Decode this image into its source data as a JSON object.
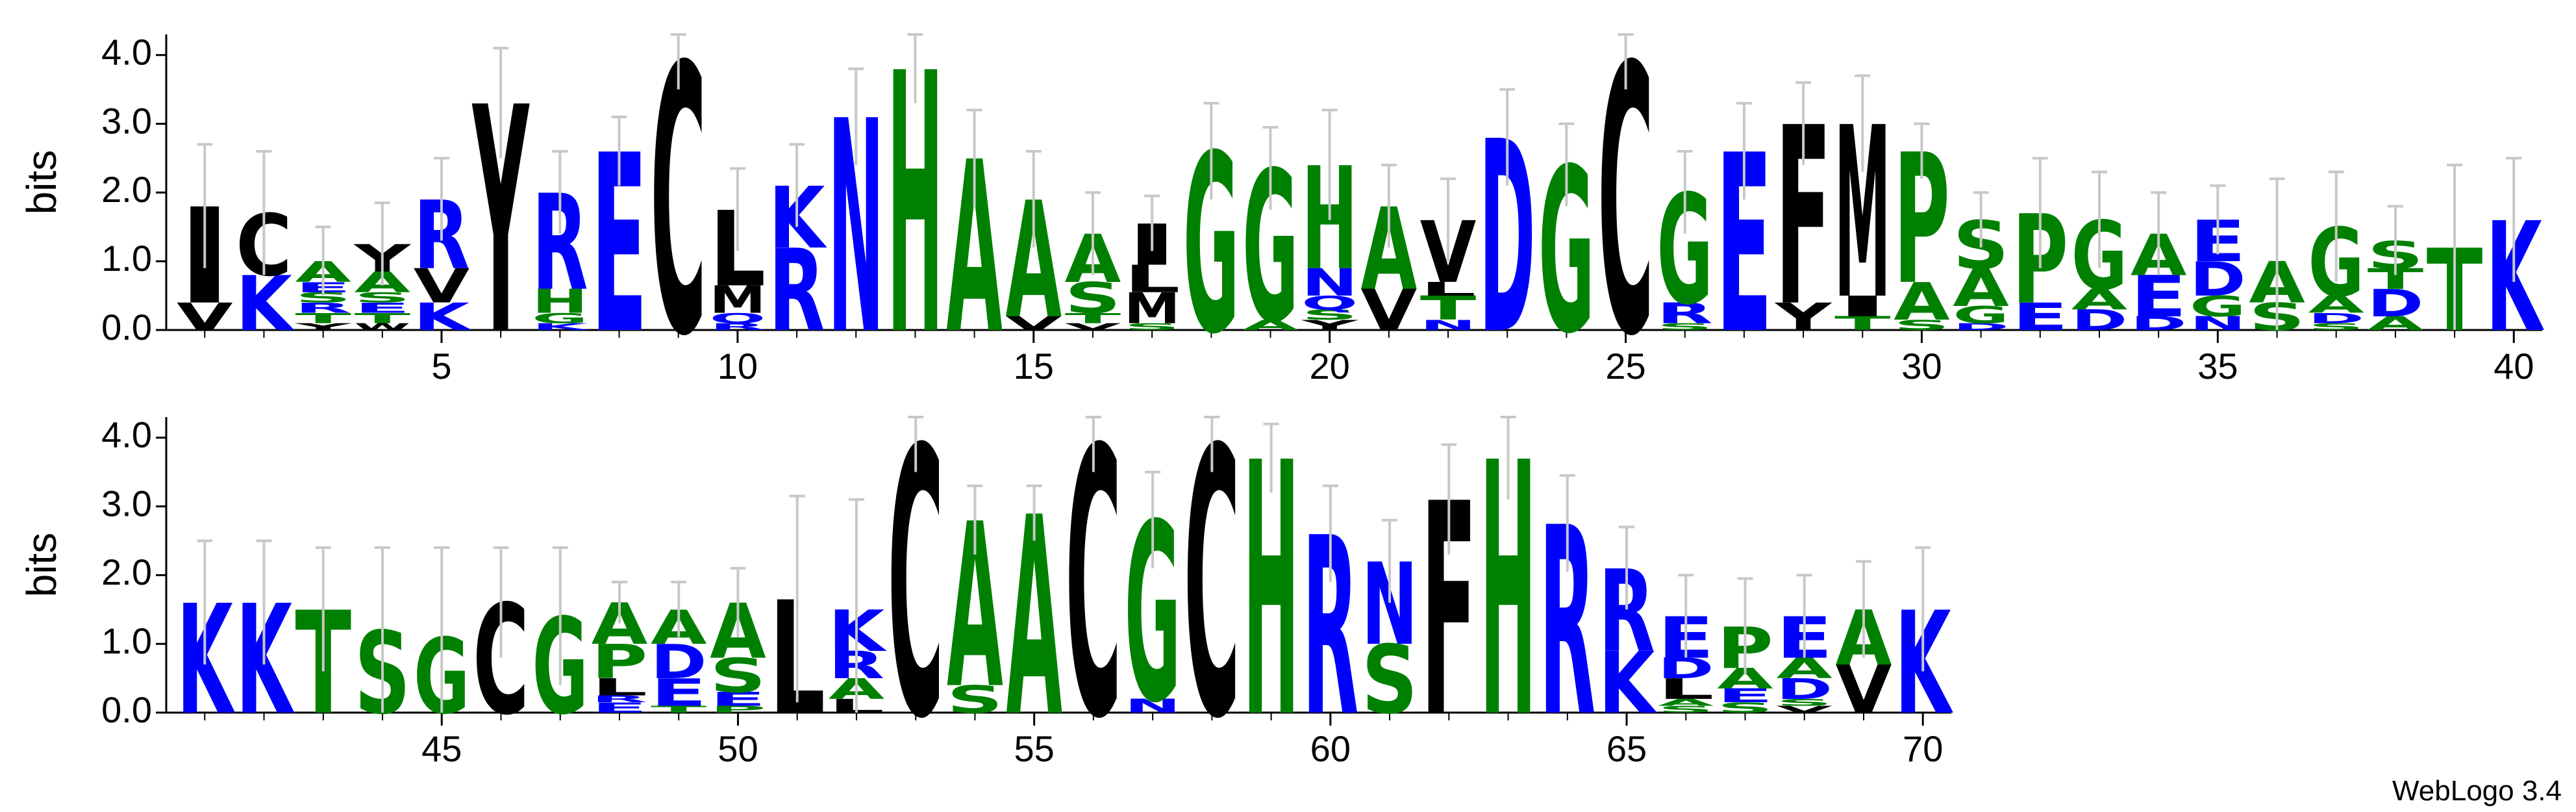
{
  "chart_data": [
    {
      "type": "logo",
      "ylabel": "bits",
      "xlim": [
        0.35,
        40.48
      ],
      "xticks": [
        5,
        10,
        15,
        20,
        25,
        30,
        35,
        40
      ],
      "ylim": [
        0,
        4.3
      ],
      "yticks": [
        {
          "value": 0,
          "label": "0.0"
        },
        {
          "value": 1,
          "label": "1.0"
        },
        {
          "value": 2,
          "label": "2.0"
        },
        {
          "value": 3,
          "label": "3.0"
        },
        {
          "value": 4,
          "label": "4.0"
        }
      ],
      "letter_colors": {
        "A": "#008000",
        "G": "#008000",
        "H": "#008000",
        "S": "#008000",
        "T": "#008000",
        "P": "#008000",
        "N": "#0000ff",
        "K": "#0000ff",
        "R": "#0000ff",
        "E": "#0000ff",
        "D": "#0000ff",
        "Q": "#0000ff",
        "C": "#000000",
        "Y": "#000000",
        "L": "#000000",
        "M": "#000000",
        "F": "#000000",
        "V": "#000000",
        "I": "#000000",
        "W": "#000000"
      },
      "x": [
        1,
        2,
        3,
        4,
        5,
        6,
        7,
        8,
        9,
        10,
        11,
        12,
        13,
        14,
        15,
        16,
        17,
        18,
        19,
        20,
        21,
        22,
        23,
        24,
        25,
        26,
        27,
        28,
        29,
        30,
        31,
        32,
        33,
        34,
        35,
        36,
        37,
        38,
        39,
        40
      ],
      "errors": [
        0.9,
        0.9,
        0.5,
        0.6,
        0.6,
        0.8,
        0.6,
        0.5,
        0.4,
        0.6,
        0.6,
        0.7,
        0.5,
        0.7,
        0.7,
        0.6,
        0.4,
        0.7,
        0.6,
        0.8,
        0.6,
        0.6,
        0.7,
        0.6,
        0.4,
        0.6,
        0.7,
        0.6,
        0.7,
        0.4,
        0.4,
        0.8,
        0.7,
        0.6,
        0.5,
        1.2,
        0.8,
        0.5,
        1.2,
        0.9
      ],
      "stacks": [
        [
          {
            "letter": "V",
            "bits": 0.4
          },
          {
            "letter": "I",
            "bits": 1.4
          }
        ],
        [
          {
            "letter": "K",
            "bits": 0.8
          },
          {
            "letter": "C",
            "bits": 0.9
          }
        ],
        [
          {
            "letter": "Y",
            "bits": 0.1
          },
          {
            "letter": "T",
            "bits": 0.15
          },
          {
            "letter": "R",
            "bits": 0.15
          },
          {
            "letter": "S",
            "bits": 0.15
          },
          {
            "letter": "E",
            "bits": 0.15
          },
          {
            "letter": "A",
            "bits": 0.3
          }
        ],
        [
          {
            "letter": "W",
            "bits": 0.1
          },
          {
            "letter": "T",
            "bits": 0.15
          },
          {
            "letter": "E",
            "bits": 0.15
          },
          {
            "letter": "S",
            "bits": 0.15
          },
          {
            "letter": "A",
            "bits": 0.3
          },
          {
            "letter": "Y",
            "bits": 0.4
          }
        ],
        [
          {
            "letter": "K",
            "bits": 0.4
          },
          {
            "letter": "V",
            "bits": 0.5
          },
          {
            "letter": "R",
            "bits": 1
          }
        ],
        [
          {
            "letter": "Y",
            "bits": 3.3
          }
        ],
        [
          {
            "letter": "K",
            "bits": 0.1
          },
          {
            "letter": "G",
            "bits": 0.15
          },
          {
            "letter": "H",
            "bits": 0.35
          },
          {
            "letter": "R",
            "bits": 1.4
          }
        ],
        [
          {
            "letter": "E",
            "bits": 2.6
          }
        ],
        [
          {
            "letter": "C",
            "bits": 3.9
          }
        ],
        [
          {
            "letter": "R",
            "bits": 0.1
          },
          {
            "letter": "Q",
            "bits": 0.15
          },
          {
            "letter": "M",
            "bits": 0.4
          },
          {
            "letter": "L",
            "bits": 1.1
          }
        ],
        [
          {
            "letter": "R",
            "bits": 1.2
          },
          {
            "letter": "K",
            "bits": 0.9
          }
        ],
        [
          {
            "letter": "N",
            "bits": 3.1
          }
        ],
        [
          {
            "letter": "H",
            "bits": 3.8
          }
        ],
        [
          {
            "letter": "A",
            "bits": 2.5
          }
        ],
        [
          {
            "letter": "V",
            "bits": 0.2
          },
          {
            "letter": "A",
            "bits": 1.7
          }
        ],
        [
          {
            "letter": "V",
            "bits": 0.1
          },
          {
            "letter": "T",
            "bits": 0.15
          },
          {
            "letter": "S",
            "bits": 0.45
          },
          {
            "letter": "A",
            "bits": 0.7
          }
        ],
        [
          {
            "letter": "S",
            "bits": 0.1
          },
          {
            "letter": "M",
            "bits": 0.45
          },
          {
            "letter": "L",
            "bits": 0.4
          },
          {
            "letter": "I",
            "bits": 0.6
          }
        ],
        [
          {
            "letter": "G",
            "bits": 2.6
          }
        ],
        [
          {
            "letter": "A",
            "bits": 0.15
          },
          {
            "letter": "G",
            "bits": 2.2
          }
        ],
        [
          {
            "letter": "Y",
            "bits": 0.15
          },
          {
            "letter": "S",
            "bits": 0.15
          },
          {
            "letter": "Q",
            "bits": 0.2
          },
          {
            "letter": "N",
            "bits": 0.4
          },
          {
            "letter": "H",
            "bits": 1.5
          }
        ],
        [
          {
            "letter": "V",
            "bits": 0.6
          },
          {
            "letter": "A",
            "bits": 1.2
          }
        ],
        [
          {
            "letter": "N",
            "bits": 0.15
          },
          {
            "letter": "T",
            "bits": 0.35
          },
          {
            "letter": "L",
            "bits": 0.2
          },
          {
            "letter": "V",
            "bits": 0.9
          }
        ],
        [
          {
            "letter": "D",
            "bits": 2.8
          }
        ],
        [
          {
            "letter": "G",
            "bits": 2.4
          }
        ],
        [
          {
            "letter": "C",
            "bits": 3.9
          }
        ],
        [
          {
            "letter": "S",
            "bits": 0.1
          },
          {
            "letter": "R",
            "bits": 0.3
          },
          {
            "letter": "G",
            "bits": 1.6
          }
        ],
        [
          {
            "letter": "E",
            "bits": 2.6
          }
        ],
        [
          {
            "letter": "Y",
            "bits": 0.4
          },
          {
            "letter": "F",
            "bits": 2.6
          }
        ],
        [
          {
            "letter": "T",
            "bits": 0.2
          },
          {
            "letter": "I",
            "bits": 0.3
          },
          {
            "letter": "M",
            "bits": 2.5
          }
        ],
        [
          {
            "letter": "S",
            "bits": 0.15
          },
          {
            "letter": "A",
            "bits": 0.55
          },
          {
            "letter": "P",
            "bits": 1.9
          }
        ],
        [
          {
            "letter": "D",
            "bits": 0.1
          },
          {
            "letter": "G",
            "bits": 0.25
          },
          {
            "letter": "A",
            "bits": 0.55
          },
          {
            "letter": "S",
            "bits": 0.7
          }
        ],
        [
          {
            "letter": "E",
            "bits": 0.4
          },
          {
            "letter": "P",
            "bits": 1.3
          }
        ],
        [
          {
            "letter": "D",
            "bits": 0.3
          },
          {
            "letter": "A",
            "bits": 0.3
          },
          {
            "letter": "G",
            "bits": 1
          }
        ],
        [
          {
            "letter": "D",
            "bits": 0.2
          },
          {
            "letter": "E",
            "bits": 0.6
          },
          {
            "letter": "A",
            "bits": 0.6
          }
        ],
        [
          {
            "letter": "N",
            "bits": 0.2
          },
          {
            "letter": "G",
            "bits": 0.3
          },
          {
            "letter": "D",
            "bits": 0.5
          },
          {
            "letter": "E",
            "bits": 0.6
          }
        ],
        [
          {
            "letter": "S",
            "bits": 0.4
          },
          {
            "letter": "A",
            "bits": 0.6
          }
        ],
        [
          {
            "letter": "S",
            "bits": 0.1
          },
          {
            "letter": "D",
            "bits": 0.15
          },
          {
            "letter": "A",
            "bits": 0.25
          },
          {
            "letter": "G",
            "bits": 1
          }
        ],
        [
          {
            "letter": "A",
            "bits": 0.2
          },
          {
            "letter": "D",
            "bits": 0.4
          },
          {
            "letter": "T",
            "bits": 0.3
          },
          {
            "letter": "S",
            "bits": 0.4
          }
        ],
        [
          {
            "letter": "T",
            "bits": 1.2
          }
        ],
        [
          {
            "letter": "K",
            "bits": 1.6
          }
        ]
      ]
    },
    {
      "type": "logo",
      "ylabel": "bits",
      "xlim": [
        40.35,
        70.48
      ],
      "xticks": [
        45,
        50,
        55,
        60,
        65,
        70
      ],
      "ylim": [
        0,
        4.3
      ],
      "yticks": [
        {
          "value": 0,
          "label": "0.0"
        },
        {
          "value": 1,
          "label": "1.0"
        },
        {
          "value": 2,
          "label": "2.0"
        },
        {
          "value": 3,
          "label": "3.0"
        },
        {
          "value": 4,
          "label": "4.0"
        }
      ],
      "letter_colors": {
        "A": "#008000",
        "G": "#008000",
        "H": "#008000",
        "S": "#008000",
        "T": "#008000",
        "P": "#008000",
        "N": "#0000ff",
        "K": "#0000ff",
        "R": "#0000ff",
        "E": "#0000ff",
        "D": "#0000ff",
        "Q": "#0000ff",
        "C": "#000000",
        "Y": "#000000",
        "L": "#000000",
        "M": "#000000",
        "F": "#000000",
        "V": "#000000",
        "I": "#000000",
        "W": "#000000"
      },
      "x": [
        41,
        42,
        43,
        44,
        45,
        46,
        47,
        48,
        49,
        50,
        51,
        52,
        53,
        54,
        55,
        56,
        57,
        58,
        59,
        60,
        61,
        62,
        63,
        64,
        65,
        66,
        67,
        68,
        69,
        70
      ],
      "errors": [
        0.9,
        0.9,
        0.9,
        1.2,
        1.3,
        0.8,
        1,
        0.3,
        0.4,
        0.5,
        1.5,
        1.6,
        0.4,
        0.5,
        0.4,
        0.4,
        0.7,
        0.4,
        0.5,
        0.7,
        0.6,
        0.8,
        0.6,
        0.7,
        0.6,
        0.6,
        0.7,
        0.6,
        0.7,
        0.9
      ],
      "stacks": [
        [
          {
            "letter": "K",
            "bits": 1.6
          }
        ],
        [
          {
            "letter": "K",
            "bits": 1.6
          }
        ],
        [
          {
            "letter": "T",
            "bits": 1.5
          }
        ],
        [
          {
            "letter": "S",
            "bits": 1.2
          }
        ],
        [
          {
            "letter": "G",
            "bits": 1.1
          }
        ],
        [
          {
            "letter": "C",
            "bits": 1.6
          }
        ],
        [
          {
            "letter": "G",
            "bits": 1.4
          }
        ],
        [
          {
            "letter": "E",
            "bits": 0.15
          },
          {
            "letter": "R",
            "bits": 0.1
          },
          {
            "letter": "L",
            "bits": 0.25
          },
          {
            "letter": "P",
            "bits": 0.5
          },
          {
            "letter": "A",
            "bits": 0.6
          }
        ],
        [
          {
            "letter": "T",
            "bits": 0.1
          },
          {
            "letter": "E",
            "bits": 0.4
          },
          {
            "letter": "D",
            "bits": 0.5
          },
          {
            "letter": "A",
            "bits": 0.5
          }
        ],
        [
          {
            "letter": "P",
            "bits": 0.1
          },
          {
            "letter": "E",
            "bits": 0.2
          },
          {
            "letter": "S",
            "bits": 0.5
          },
          {
            "letter": "A",
            "bits": 0.8
          }
        ],
        [
          {
            "letter": "L",
            "bits": 1.65
          }
        ],
        [
          {
            "letter": "L",
            "bits": 0.2
          },
          {
            "letter": "A",
            "bits": 0.3
          },
          {
            "letter": "R",
            "bits": 0.4
          },
          {
            "letter": "K",
            "bits": 0.6
          }
        ],
        [
          {
            "letter": "C",
            "bits": 3.9
          }
        ],
        [
          {
            "letter": "S",
            "bits": 0.4
          },
          {
            "letter": "A",
            "bits": 2.4
          }
        ],
        [
          {
            "letter": "A",
            "bits": 2.9
          }
        ],
        [
          {
            "letter": "C",
            "bits": 3.9
          }
        ],
        [
          {
            "letter": "N",
            "bits": 0.2
          },
          {
            "letter": "G",
            "bits": 2.6
          }
        ],
        [
          {
            "letter": "C",
            "bits": 3.9
          }
        ],
        [
          {
            "letter": "H",
            "bits": 3.7
          }
        ],
        [
          {
            "letter": "R",
            "bits": 2.6
          }
        ],
        [
          {
            "letter": "S",
            "bits": 1
          },
          {
            "letter": "N",
            "bits": 1.2
          }
        ],
        [
          {
            "letter": "F",
            "bits": 3.1
          }
        ],
        [
          {
            "letter": "H",
            "bits": 3.7
          }
        ],
        [
          {
            "letter": "R",
            "bits": 2.75
          }
        ],
        [
          {
            "letter": "K",
            "bits": 0.9
          },
          {
            "letter": "R",
            "bits": 1.2
          }
        ],
        [
          {
            "letter": "S",
            "bits": 0.1
          },
          {
            "letter": "A",
            "bits": 0.1
          },
          {
            "letter": "L",
            "bits": 0.3
          },
          {
            "letter": "D",
            "bits": 0.3
          },
          {
            "letter": "E",
            "bits": 0.6
          }
        ],
        [
          {
            "letter": "S",
            "bits": 0.15
          },
          {
            "letter": "E",
            "bits": 0.2
          },
          {
            "letter": "A",
            "bits": 0.3
          },
          {
            "letter": "P",
            "bits": 0.6
          }
        ],
        [
          {
            "letter": "V",
            "bits": 0.1
          },
          {
            "letter": "S",
            "bits": 0.1
          },
          {
            "letter": "D",
            "bits": 0.3
          },
          {
            "letter": "A",
            "bits": 0.3
          },
          {
            "letter": "E",
            "bits": 0.6
          }
        ],
        [
          {
            "letter": "V",
            "bits": 0.7
          },
          {
            "letter": "A",
            "bits": 0.8
          }
        ],
        [
          {
            "letter": "K",
            "bits": 1.5
          }
        ]
      ]
    }
  ],
  "footer": "WebLogo 3.4"
}
